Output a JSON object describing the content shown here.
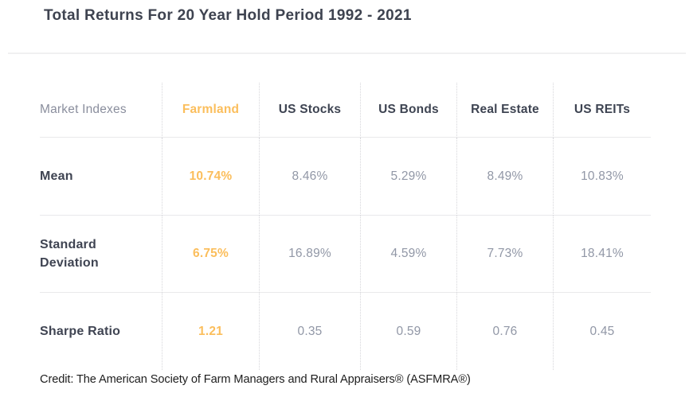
{
  "title": "Total Returns For 20 Year Hold Period 1992 - 2021",
  "credit": "Credit: The American Society of Farm Managers and Rural Appraisers® (ASFMRA®)",
  "colors": {
    "accent_orange": "#fbbe5c",
    "heading_text": "#3e4452",
    "muted_value_text": "#9197a6",
    "corner_label_text": "#8a8e9d",
    "row_separator": "#e9e9eb",
    "dotted_column_line": "#d6d6da",
    "title_divider": "#f0f0f1",
    "background": "#ffffff"
  },
  "table": {
    "corner_label": "Market Indexes",
    "columns": [
      "Farmland",
      "US Stocks",
      "US Bonds",
      "Real Estate",
      "US REITs"
    ],
    "highlight_column": "Farmland",
    "rows": [
      {
        "label": "Mean",
        "values": [
          "10.74%",
          "8.46%",
          "5.29%",
          "8.49%",
          "10.83%"
        ]
      },
      {
        "label": "Standard Deviation",
        "values": [
          "6.75%",
          "16.89%",
          "4.59%",
          "7.73%",
          "18.41%"
        ]
      },
      {
        "label": "Sharpe Ratio",
        "values": [
          "1.21",
          "0.35",
          "0.59",
          "0.76",
          "0.45"
        ]
      }
    ]
  },
  "chart_data": {
    "type": "table",
    "title": "Total Returns For 20 Year Hold Period 1992 - 2021",
    "columns": [
      "Farmland",
      "US Stocks",
      "US Bonds",
      "Real Estate",
      "US REITs"
    ],
    "metrics": [
      "Mean",
      "Standard Deviation",
      "Sharpe Ratio"
    ],
    "series": [
      {
        "name": "Farmland",
        "mean_pct": 10.74,
        "std_dev_pct": 6.75,
        "sharpe_ratio": 1.21
      },
      {
        "name": "US Stocks",
        "mean_pct": 8.46,
        "std_dev_pct": 16.89,
        "sharpe_ratio": 0.35
      },
      {
        "name": "US Bonds",
        "mean_pct": 5.29,
        "std_dev_pct": 4.59,
        "sharpe_ratio": 0.59
      },
      {
        "name": "Real Estate",
        "mean_pct": 8.49,
        "std_dev_pct": 7.73,
        "sharpe_ratio": 0.76
      },
      {
        "name": "US REITs",
        "mean_pct": 10.83,
        "std_dev_pct": 18.41,
        "sharpe_ratio": 0.45
      }
    ],
    "highlight": "Farmland",
    "source": "The American Society of Farm Managers and Rural Appraisers® (ASFMRA®)"
  }
}
